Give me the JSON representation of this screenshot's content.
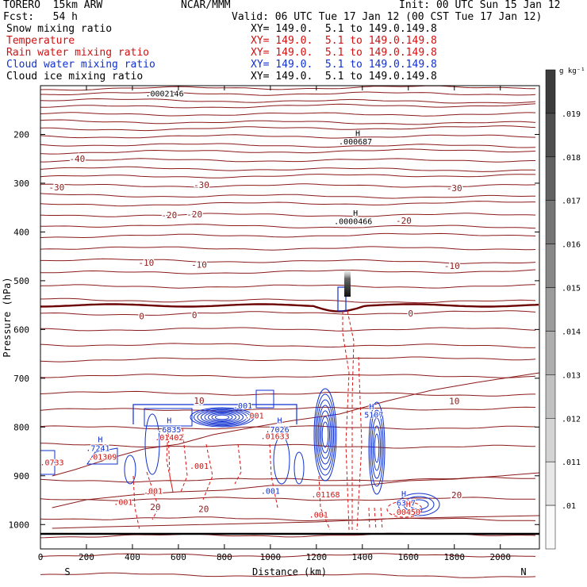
{
  "header": {
    "model": "TORERO  15km ARW",
    "center": "NCAR/MMM",
    "init": "Init: 00 UTC Sun 15 Jan 12",
    "fcst": "Fcst:   54 h",
    "valid": "Valid: 06 UTC Tue 17 Jan 12 (00 CST Tue 17 Jan 12)"
  },
  "fields": [
    {
      "name": "Snow mixing ratio",
      "xy": "XY= 149.0.  5.1 to 149.0.149.8",
      "color": "#000000"
    },
    {
      "name": "Temperature",
      "xy": "XY= 149.0.  5.1 to 149.0.149.8",
      "color": "#d01010"
    },
    {
      "name": "Rain water mixing ratio",
      "xy": "XY= 149.0.  5.1 to 149.0.149.8",
      "color": "#d01010"
    },
    {
      "name": "Cloud water mixing ratio",
      "xy": "XY= 149.0.  5.1 to 149.0.149.8",
      "color": "#1030d0"
    },
    {
      "name": "Cloud ice mixing ratio",
      "xy": "XY= 149.0.  5.1 to 149.0.149.8",
      "color": "#000000"
    }
  ],
  "colors": {
    "temperature": "#8b1a1a",
    "zero_isotherm": "#6b0000",
    "rain": "#dd1111",
    "cloud_water": "#1030d0",
    "axis": "#000000"
  },
  "chart_data": {
    "type": "cross-section contour",
    "xlabel": "Distance (km)",
    "ylabel": "Pressure (hPa)",
    "xlim": [
      0,
      2170
    ],
    "ylim": [
      1050,
      100
    ],
    "x_ticks": [
      0,
      200,
      400,
      600,
      800,
      1000,
      1200,
      1400,
      1600,
      1800,
      2000
    ],
    "y_ticks": [
      200,
      300,
      400,
      500,
      600,
      700,
      800,
      900,
      1000
    ],
    "x_end_labels": {
      "left": "S",
      "right": "N"
    },
    "temperature_labels": [
      {
        "text": "-40",
        "x": 160,
        "p": 256
      },
      {
        "text": "-30",
        "x": 70,
        "p": 315
      },
      {
        "text": "-30",
        "x": 700,
        "p": 310
      },
      {
        "text": "-30",
        "x": 1800,
        "p": 316
      },
      {
        "text": "-20",
        "x": 560,
        "p": 372
      },
      {
        "text": "-20",
        "x": 670,
        "p": 370
      },
      {
        "text": "-20",
        "x": 1580,
        "p": 383
      },
      {
        "text": "-10",
        "x": 460,
        "p": 469
      },
      {
        "text": "-10",
        "x": 690,
        "p": 473
      },
      {
        "text": "-10",
        "x": 1790,
        "p": 476
      },
      {
        "text": "0",
        "x": 440,
        "p": 579
      },
      {
        "text": "0",
        "x": 670,
        "p": 577
      },
      {
        "text": "0",
        "x": 1610,
        "p": 573
      },
      {
        "text": "10",
        "x": 690,
        "p": 752
      },
      {
        "text": "10",
        "x": 1800,
        "p": 753
      },
      {
        "text": "20",
        "x": 500,
        "p": 970
      },
      {
        "text": "20",
        "x": 710,
        "p": 974
      },
      {
        "text": "20",
        "x": 1810,
        "p": 946
      }
    ],
    "maxima_labels": [
      {
        "text": "H",
        "x": 1380,
        "p": 203,
        "color": "#000000"
      },
      {
        "text": ".000687",
        "x": 1370,
        "p": 220,
        "color": "#000000"
      },
      {
        "text": "H",
        "x": 1370,
        "p": 367,
        "color": "#000000"
      },
      {
        "text": ".0000466",
        "x": 1360,
        "p": 384,
        "color": "#000000"
      },
      {
        "text": ".0002146",
        "x": 540,
        "p": 122,
        "color": "#000000"
      },
      {
        "text": "H",
        "x": 560,
        "p": 792,
        "color": "#1030d0"
      },
      {
        "text": ".6835",
        "x": 560,
        "p": 811,
        "color": "#1030d0"
      },
      {
        "text": "H",
        "x": 1040,
        "p": 792,
        "color": "#1030d0"
      },
      {
        "text": ".7026",
        "x": 1030,
        "p": 811,
        "color": "#1030d0"
      },
      {
        "text": "H",
        "x": 260,
        "p": 831,
        "color": "#1030d0"
      },
      {
        "text": ".7241",
        "x": 250,
        "p": 849,
        "color": "#1030d0"
      },
      {
        "text": "H",
        "x": 1440,
        "p": 764,
        "color": "#1030d0"
      },
      {
        "text": "5107",
        "x": 1450,
        "p": 781,
        "color": "#1030d0"
      },
      {
        "text": "H",
        "x": 1580,
        "p": 943,
        "color": "#1030d0"
      },
      {
        "text": "6327",
        "x": 1590,
        "p": 961,
        "color": "#1030d0"
      },
      {
        "text": "H",
        "x": 1600,
        "p": 964,
        "color": "#d01010"
      },
      {
        "text": ".00450",
        "x": 1590,
        "p": 980,
        "color": "#d01010"
      },
      {
        "text": ".001",
        "x": 880,
        "p": 762,
        "color": "#1030d0"
      },
      {
        "text": ".001",
        "x": 1000,
        "p": 937,
        "color": "#1030d0"
      },
      {
        "text": ".001",
        "x": 930,
        "p": 782,
        "color": "#d01010"
      },
      {
        "text": ".01402",
        "x": 560,
        "p": 827,
        "color": "#d01010"
      },
      {
        "text": ".01633",
        "x": 1020,
        "p": 825,
        "color": "#d01010"
      },
      {
        "text": ".01309",
        "x": 270,
        "p": 867,
        "color": "#d01010"
      },
      {
        "text": ".001",
        "x": 690,
        "p": 886,
        "color": "#d01010"
      },
      {
        "text": ".001",
        "x": 490,
        "p": 937,
        "color": "#d01010"
      },
      {
        "text": ".001",
        "x": 360,
        "p": 960,
        "color": "#d01010"
      },
      {
        "text": ".01168",
        "x": 1240,
        "p": 944,
        "color": "#d01010"
      },
      {
        "text": ".001",
        "x": 1210,
        "p": 986,
        "color": "#d01010"
      },
      {
        "text": ".0733",
        "x": 50,
        "p": 878,
        "color": "#d01010"
      }
    ]
  },
  "colorbar": {
    "unit": "g kg⁻¹",
    "ticks": [
      ".019",
      ".018",
      ".017",
      ".016",
      ".015",
      ".014",
      ".013",
      ".012",
      ".011",
      ".01"
    ]
  }
}
